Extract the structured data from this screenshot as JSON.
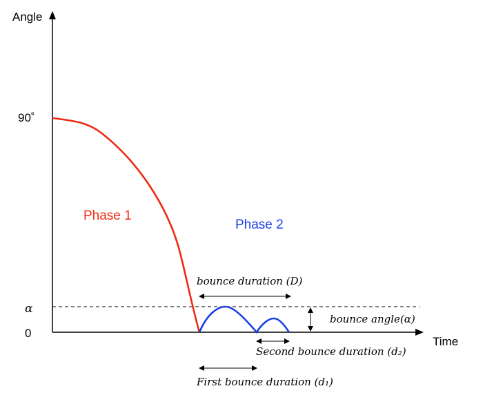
{
  "axes": {
    "y_label": "Angle",
    "x_label": "Time",
    "tick_90": "90˚",
    "tick_alpha": "α",
    "tick_zero": "0"
  },
  "phases": {
    "phase1_label": "Phase 1",
    "phase2_label": "Phase 2"
  },
  "annotations": {
    "bounce_duration": "bounce duration (D)",
    "bounce_angle": "bounce angle(α)",
    "second_bounce_duration": "Second bounce duration (d₂)",
    "first_bounce_duration": "First bounce duration (d₁)"
  },
  "colors": {
    "phase1": "#ee2a12",
    "phase2": "#1a3ee6",
    "axis": "#000000"
  }
}
